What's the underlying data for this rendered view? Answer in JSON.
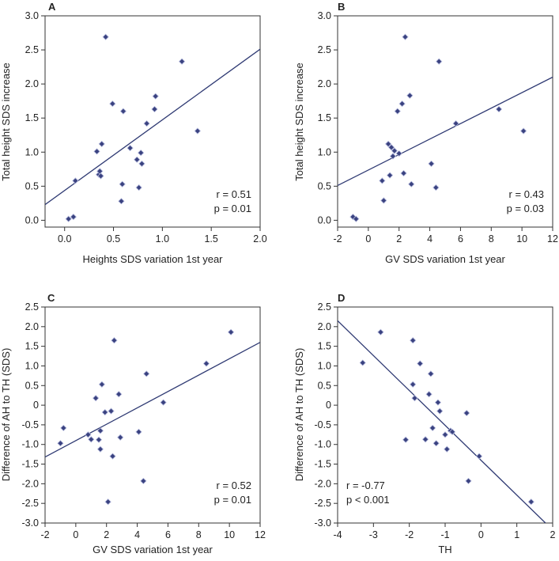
{
  "colors": {
    "marker": "#3a4280",
    "line": "#2f3a73",
    "axis": "#333333"
  },
  "chart_data": [
    {
      "panel": "A",
      "type": "scatter",
      "xlabel": "Heights SDS variation 1st year",
      "ylabel": "Total height SDS increase",
      "xlim": [
        -0.2,
        2.0
      ],
      "ylim": [
        -0.1,
        3.0
      ],
      "xticks": [
        0.0,
        0.5,
        1.0,
        1.5,
        2.0
      ],
      "xtick_labels": [
        "0.0",
        "0.5",
        "1.0",
        "1.5",
        "2.0"
      ],
      "yticks": [
        0.0,
        0.5,
        1.0,
        1.5,
        2.0,
        2.5,
        3.0
      ],
      "ytick_labels": [
        "0.0",
        "0.5",
        "1.0",
        "1.5",
        "2.0",
        "2.5",
        "3.0"
      ],
      "stats": [
        "r = 0.51",
        "p = 0.01"
      ],
      "stats_position": "bottom-right",
      "fit": {
        "x": [
          -0.2,
          2.0
        ],
        "y": [
          0.23,
          2.51
        ]
      },
      "points": {
        "x": [
          0.04,
          0.09,
          0.11,
          0.33,
          0.35,
          0.36,
          0.37,
          0.38,
          0.42,
          0.49,
          0.58,
          0.59,
          0.6,
          0.67,
          0.74,
          0.76,
          0.78,
          0.79,
          0.84,
          0.92,
          0.93,
          1.2,
          1.36
        ],
        "y": [
          0.02,
          0.05,
          0.58,
          1.01,
          0.67,
          0.72,
          0.65,
          1.12,
          2.69,
          1.71,
          0.28,
          0.53,
          1.6,
          1.06,
          0.89,
          0.48,
          0.99,
          0.83,
          1.42,
          1.63,
          1.82,
          2.33,
          1.31
        ]
      }
    },
    {
      "panel": "B",
      "type": "scatter",
      "xlabel": "GV SDS variation 1st year",
      "ylabel": "Total height SDS increase",
      "xlim": [
        -2,
        12
      ],
      "ylim": [
        -0.1,
        3.0
      ],
      "xticks": [
        -2,
        0,
        2,
        4,
        6,
        8,
        10,
        12
      ],
      "xtick_labels": [
        "-2",
        "0",
        "2",
        "4",
        "6",
        "8",
        "10",
        "12"
      ],
      "yticks": [
        0.0,
        0.5,
        1.0,
        1.5,
        2.0,
        2.5,
        3.0
      ],
      "ytick_labels": [
        "0.0",
        "0.5",
        "1.0",
        "1.5",
        "2.0",
        "2.5",
        "3.0"
      ],
      "stats": [
        "r = 0.43",
        "p = 0.03"
      ],
      "stats_position": "bottom-right",
      "fit": {
        "x": [
          -2,
          12
        ],
        "y": [
          0.51,
          2.1
        ]
      },
      "points": {
        "x": [
          -1.0,
          -0.8,
          0.9,
          1.0,
          1.3,
          1.4,
          1.5,
          1.6,
          1.7,
          1.9,
          2.0,
          2.2,
          2.3,
          2.4,
          2.7,
          2.8,
          4.1,
          4.4,
          4.6,
          5.7,
          8.5,
          10.1
        ],
        "y": [
          0.05,
          0.02,
          0.58,
          0.29,
          1.12,
          0.66,
          1.07,
          0.94,
          1.02,
          1.6,
          0.98,
          1.71,
          0.69,
          2.69,
          1.83,
          0.53,
          0.83,
          0.48,
          2.33,
          1.42,
          1.63,
          1.31
        ]
      }
    },
    {
      "panel": "C",
      "type": "scatter",
      "xlabel": "GV SDS variation 1st year",
      "ylabel": "Difference of AH to TH (SDS)",
      "xlim": [
        -2,
        12
      ],
      "ylim": [
        -3.0,
        2.5
      ],
      "xticks": [
        -2,
        0,
        2,
        4,
        6,
        8,
        10,
        12
      ],
      "xtick_labels": [
        "-2",
        "0",
        "2",
        "4",
        "6",
        "8",
        "10",
        "12"
      ],
      "yticks": [
        -3.0,
        -2.5,
        -2.0,
        -1.5,
        -1.0,
        -0.5,
        0,
        0.5,
        1.0,
        1.5,
        2.0,
        2.5
      ],
      "ytick_labels": [
        "-3.0",
        "-2.5",
        "-2.0",
        "-1.5",
        "-1.0",
        "-0.5",
        "0",
        "0.5",
        "1.0",
        "1.5",
        "2.0",
        "2.5"
      ],
      "stats": [
        "r = 0.52",
        "p = 0.01"
      ],
      "stats_position": "bottom-right",
      "fit": {
        "x": [
          -2,
          12
        ],
        "y": [
          -1.32,
          1.6
        ]
      },
      "points": {
        "x": [
          -1.0,
          -0.8,
          0.8,
          1.0,
          1.3,
          1.5,
          1.6,
          1.6,
          1.7,
          1.9,
          2.1,
          2.3,
          2.4,
          2.5,
          2.8,
          2.9,
          4.1,
          4.4,
          4.6,
          5.7,
          8.5,
          10.1
        ],
        "y": [
          -0.97,
          -0.58,
          -0.75,
          -0.87,
          0.18,
          -0.88,
          -0.65,
          -1.12,
          0.53,
          -0.18,
          -2.46,
          -0.15,
          -1.3,
          1.65,
          0.28,
          -0.82,
          -0.68,
          -1.93,
          0.8,
          0.07,
          1.06,
          1.86
        ]
      }
    },
    {
      "panel": "D",
      "type": "scatter",
      "xlabel": "TH",
      "ylabel": "Difference of AH to TH (SDS)",
      "xlim": [
        -4,
        2
      ],
      "ylim": [
        -3.0,
        2.5
      ],
      "xticks": [
        -4,
        -3,
        -2,
        -1,
        0,
        1,
        2
      ],
      "xtick_labels": [
        "-4",
        "-3",
        "-2",
        "-1",
        "0",
        "1",
        "2"
      ],
      "yticks": [
        -3.0,
        -2.5,
        -2.0,
        -1.5,
        -1.0,
        -0.5,
        0,
        0.5,
        1.0,
        1.5,
        2.0,
        2.5
      ],
      "ytick_labels": [
        "-3.0",
        "-2.5",
        "-2.0",
        "-1.5",
        "-1.0",
        "-0.5",
        "0",
        "0.5",
        "1.0",
        "1.5",
        "2.0",
        "2.5"
      ],
      "stats": [
        "r = -0.77",
        "p < 0.001"
      ],
      "stats_position": "bottom-left",
      "fit": {
        "x": [
          -4,
          1.8
        ],
        "y": [
          2.15,
          -3.0
        ]
      },
      "points": {
        "x": [
          -3.3,
          -2.8,
          -2.1,
          -1.9,
          -1.9,
          -1.85,
          -1.7,
          -1.55,
          -1.45,
          -1.4,
          -1.35,
          -1.25,
          -1.2,
          -1.15,
          -1.0,
          -0.95,
          -0.85,
          -0.8,
          -0.4,
          -0.35,
          -0.05,
          1.4
        ],
        "y": [
          1.08,
          1.86,
          -0.88,
          1.65,
          0.53,
          0.18,
          1.06,
          -0.87,
          0.28,
          0.8,
          -0.58,
          -0.97,
          0.07,
          -0.15,
          -0.75,
          -1.12,
          -0.65,
          -0.68,
          -0.2,
          -1.93,
          -1.3,
          -2.46
        ]
      }
    }
  ]
}
